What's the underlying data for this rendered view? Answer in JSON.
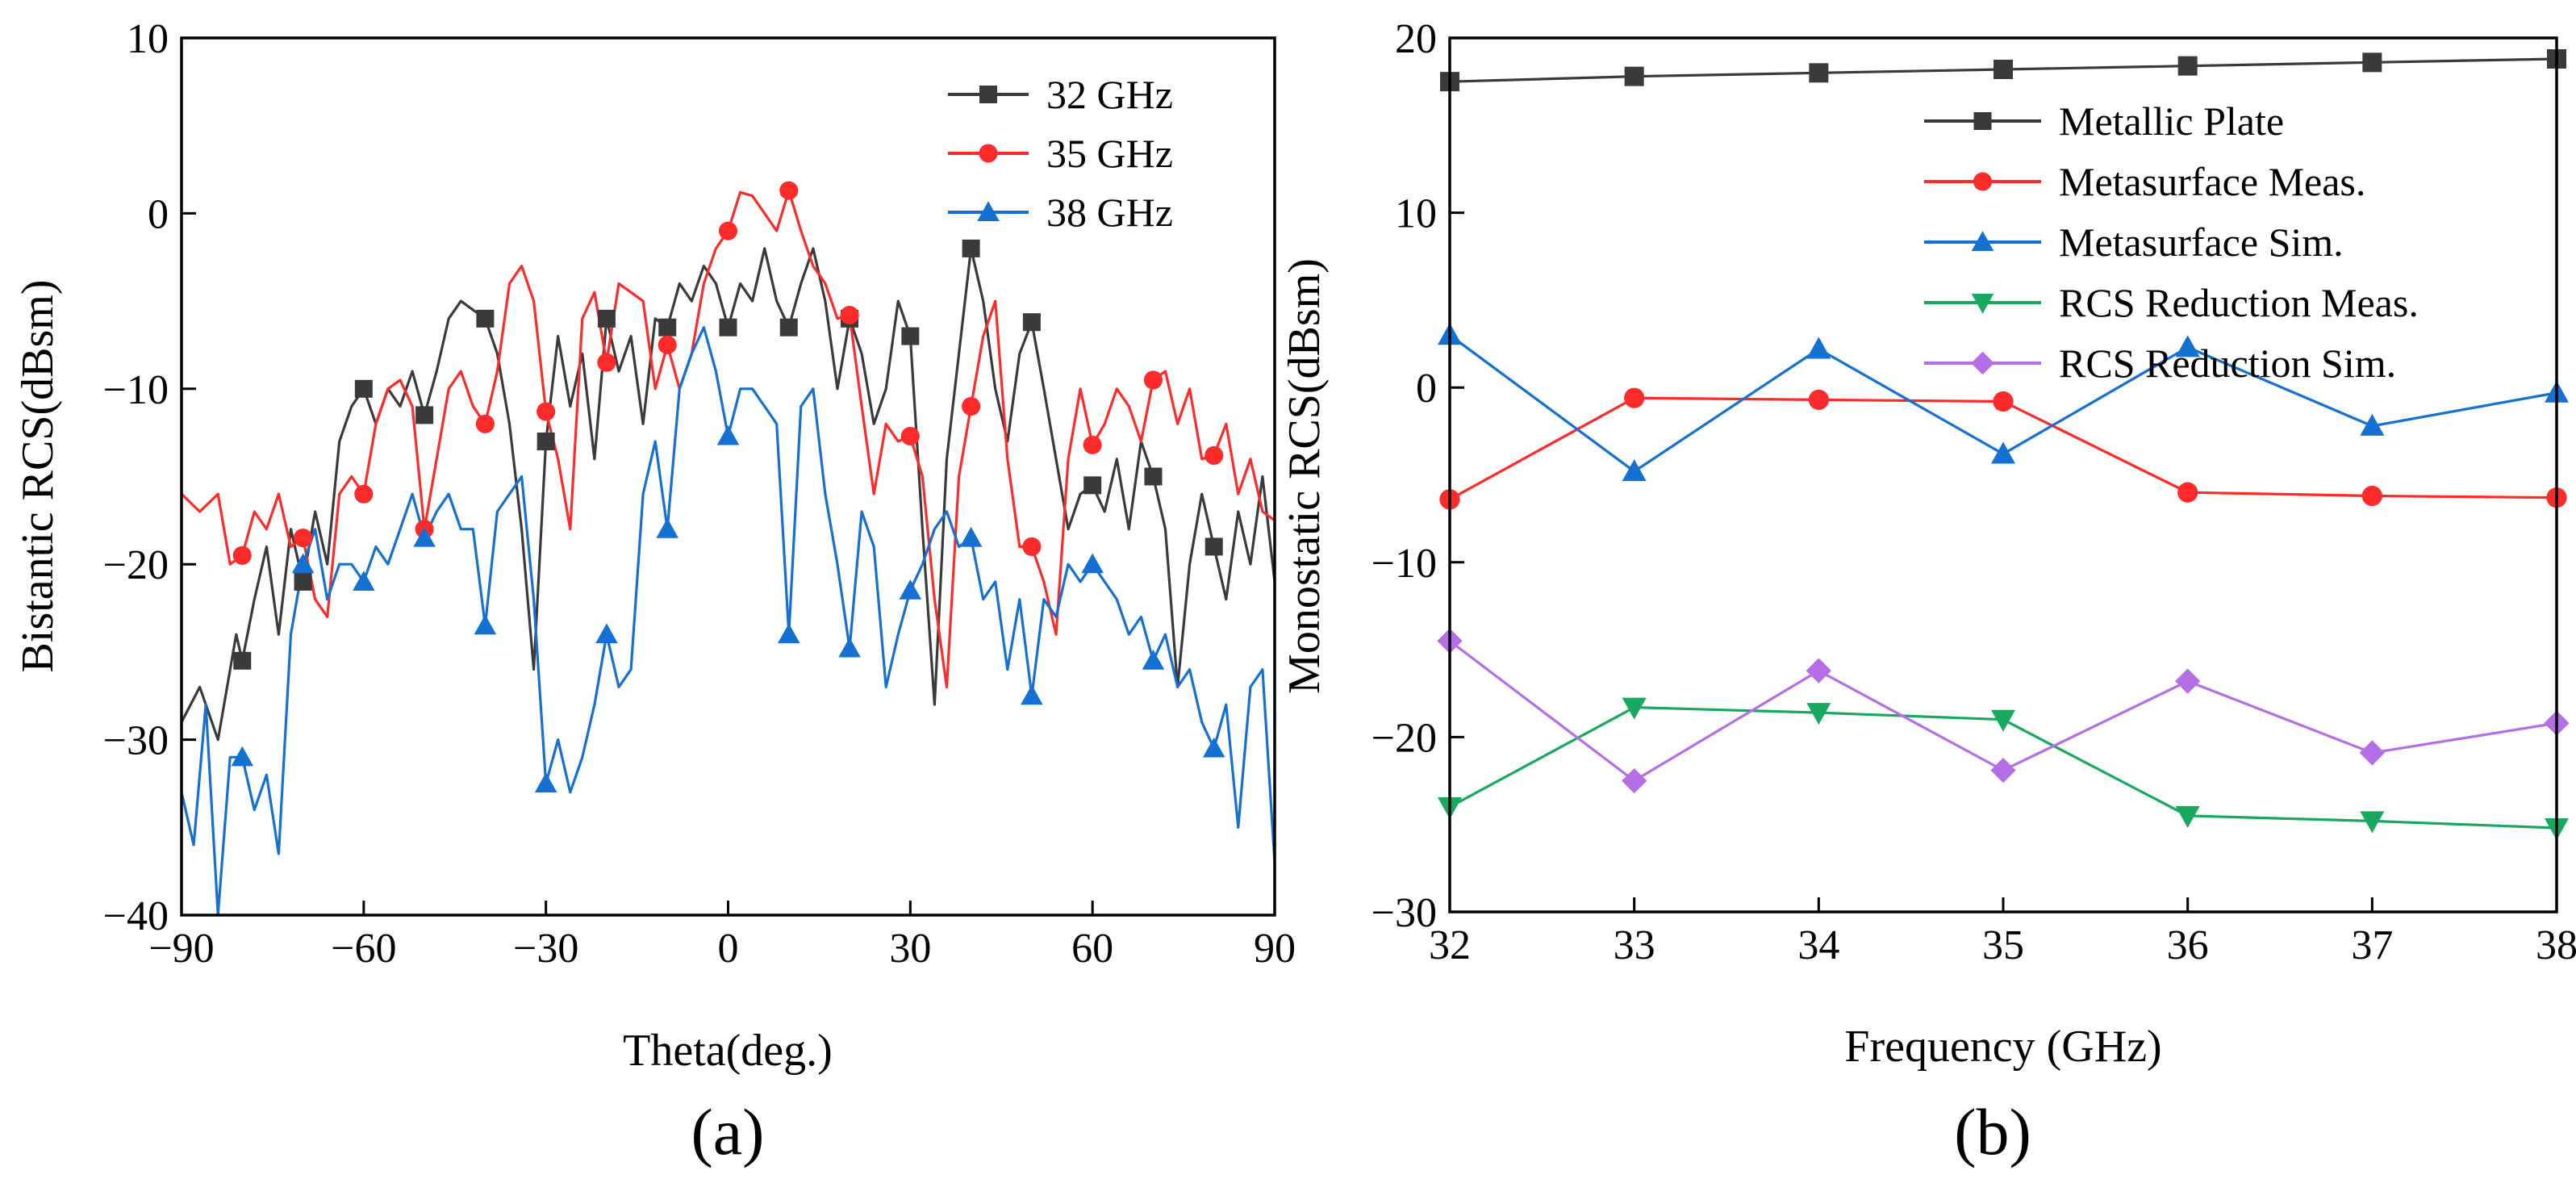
{
  "chart_data": [
    {
      "type": "line",
      "panel_label": "(a)",
      "xlabel": "Theta(deg.)",
      "ylabel": "Bistantic RCS(dBsm)",
      "xlim": [
        -90,
        90
      ],
      "ylim": [
        -40,
        10
      ],
      "xticks": [
        -90,
        -60,
        -30,
        0,
        30,
        60,
        90
      ],
      "yticks": [
        -40,
        -30,
        -20,
        -10,
        0,
        10
      ],
      "legend_position": "top-right",
      "series": [
        {
          "name": "32 GHz",
          "color": "#3a3a3a",
          "marker": "square",
          "marker_x": [
            -80,
            -70,
            -60,
            -50,
            -40,
            -30,
            -20,
            -10,
            0,
            10,
            20,
            30,
            40,
            50,
            60,
            70,
            80
          ],
          "x": [
            -90,
            -87,
            -84,
            -81,
            -80,
            -78,
            -76,
            -74,
            -72,
            -70,
            -68,
            -66,
            -64,
            -62,
            -60,
            -58,
            -56,
            -54,
            -52,
            -50,
            -48,
            -46,
            -44,
            -42,
            -40,
            -38,
            -36,
            -34,
            -32,
            -30,
            -28,
            -26,
            -24,
            -22,
            -20,
            -18,
            -16,
            -14,
            -12,
            -10,
            -8,
            -6,
            -4,
            -2,
            0,
            2,
            4,
            6,
            8,
            10,
            12,
            14,
            16,
            18,
            20,
            22,
            24,
            26,
            28,
            30,
            32,
            34,
            36,
            38,
            40,
            42,
            44,
            46,
            48,
            50,
            52,
            54,
            56,
            58,
            60,
            62,
            64,
            66,
            68,
            70,
            72,
            74,
            76,
            78,
            80,
            82,
            84,
            86,
            88,
            90
          ],
          "y": [
            -29,
            -27,
            -30,
            -24,
            -25.5,
            -22,
            -19,
            -24,
            -18,
            -21,
            -17,
            -20,
            -13,
            -11,
            -10,
            -12,
            -10,
            -11,
            -9,
            -11.5,
            -9,
            -6,
            -5,
            -5.5,
            -6,
            -8,
            -12,
            -18,
            -26,
            -13,
            -7,
            -11,
            -8,
            -14,
            -6,
            -9,
            -7,
            -12,
            -6,
            -6.5,
            -4,
            -5,
            -3,
            -4,
            -6.5,
            -4,
            -5,
            -2,
            -5,
            -6.5,
            -4,
            -2,
            -5,
            -10,
            -6,
            -8,
            -12,
            -10,
            -5,
            -7,
            -18,
            -28,
            -14,
            -8,
            -2,
            -5,
            -10,
            -13,
            -8,
            -6.2,
            -10,
            -14,
            -18,
            -16,
            -15.5,
            -17,
            -14,
            -18,
            -13,
            -15,
            -18,
            -27,
            -20,
            -16,
            -19,
            -22,
            -17,
            -20,
            -15,
            -21
          ]
        },
        {
          "name": "35 GHz",
          "color": "#ff2a2a",
          "marker": "circle",
          "marker_x": [
            -80,
            -70,
            -60,
            -50,
            -40,
            -30,
            -20,
            -10,
            0,
            10,
            20,
            30,
            40,
            50,
            60,
            70,
            80
          ],
          "x": [
            -90,
            -87,
            -84,
            -82,
            -80,
            -78,
            -76,
            -74,
            -72,
            -70,
            -68,
            -66,
            -64,
            -62,
            -60,
            -58,
            -56,
            -54,
            -52,
            -50,
            -48,
            -46,
            -44,
            -42,
            -40,
            -38,
            -36,
            -34,
            -32,
            -30,
            -28,
            -26,
            -24,
            -22,
            -20,
            -18,
            -16,
            -14,
            -12,
            -10,
            -8,
            -6,
            -4,
            -2,
            0,
            2,
            4,
            6,
            8,
            10,
            12,
            14,
            16,
            18,
            20,
            22,
            24,
            26,
            28,
            30,
            32,
            34,
            36,
            38,
            40,
            42,
            44,
            46,
            48,
            50,
            52,
            54,
            56,
            58,
            60,
            62,
            64,
            66,
            68,
            70,
            72,
            74,
            76,
            78,
            80,
            82,
            84,
            86,
            88,
            90
          ],
          "y": [
            -16,
            -17,
            -16,
            -20,
            -19.5,
            -17,
            -18,
            -16,
            -19,
            -18.5,
            -22,
            -23,
            -16,
            -15,
            -16,
            -12,
            -10,
            -9.5,
            -11,
            -18,
            -14,
            -10,
            -9,
            -11,
            -12,
            -9,
            -4,
            -3,
            -5,
            -11.3,
            -14,
            -18,
            -6,
            -4.5,
            -8.5,
            -4,
            -4.5,
            -5,
            -10,
            -7.5,
            -10,
            -8,
            -4,
            -2,
            -1,
            1.2,
            1,
            0,
            -1,
            1.3,
            -1,
            -3,
            -4,
            -6,
            -5.8,
            -11,
            -16,
            -12,
            -13,
            -12.7,
            -15,
            -22,
            -27,
            -15,
            -11,
            -7,
            -5,
            -14,
            -19,
            -19,
            -21,
            -24,
            -14,
            -10,
            -13.2,
            -12,
            -10,
            -11,
            -13,
            -9.5,
            -9,
            -12,
            -10,
            -14,
            -13.8,
            -12,
            -16,
            -14,
            -17,
            -17.5
          ]
        },
        {
          "name": "38 GHz",
          "color": "#1470d2",
          "marker": "triangle-up",
          "marker_x": [
            -80,
            -70,
            -60,
            -50,
            -40,
            -30,
            -20,
            -10,
            0,
            10,
            20,
            30,
            40,
            50,
            60,
            70,
            80
          ],
          "x": [
            -90,
            -88,
            -86,
            -84,
            -82,
            -80,
            -78,
            -76,
            -74,
            -72,
            -70,
            -68,
            -66,
            -64,
            -62,
            -60,
            -58,
            -56,
            -54,
            -52,
            -50,
            -48,
            -46,
            -44,
            -42,
            -40,
            -38,
            -36,
            -34,
            -32,
            -30,
            -28,
            -26,
            -24,
            -22,
            -20,
            -18,
            -16,
            -14,
            -12,
            -10,
            -8,
            -6,
            -4,
            -2,
            0,
            2,
            4,
            6,
            8,
            10,
            12,
            14,
            16,
            18,
            20,
            22,
            24,
            26,
            28,
            30,
            32,
            34,
            36,
            38,
            40,
            42,
            44,
            46,
            48,
            50,
            52,
            54,
            56,
            58,
            60,
            62,
            64,
            66,
            68,
            70,
            72,
            74,
            76,
            78,
            80,
            82,
            84,
            86,
            88,
            90
          ],
          "y": [
            -33,
            -36,
            -28,
            -40,
            -31,
            -31,
            -34,
            -32,
            -36.5,
            -24,
            -20,
            -18,
            -22,
            -20,
            -20,
            -21,
            -19,
            -20,
            -18,
            -16,
            -18.5,
            -17,
            -16,
            -18,
            -18,
            -23.5,
            -17,
            -16,
            -15,
            -22,
            -32.5,
            -30,
            -33,
            -31,
            -28,
            -24,
            -27,
            -26,
            -16,
            -13,
            -18,
            -10,
            -8,
            -6.5,
            -9,
            -12.7,
            -10,
            -10,
            -11,
            -12,
            -24,
            -11,
            -10,
            -16,
            -20,
            -24.8,
            -17,
            -19,
            -27,
            -24,
            -21.5,
            -20,
            -18,
            -17,
            -19,
            -18.5,
            -22,
            -21,
            -26,
            -22,
            -27.5,
            -22,
            -23,
            -20,
            -21,
            -20,
            -21,
            -22,
            -24,
            -23,
            -25.5,
            -24,
            -27,
            -26,
            -29,
            -30.5,
            -28,
            -35,
            -27,
            -26,
            -37
          ]
        }
      ]
    },
    {
      "type": "line",
      "panel_label": "(b)",
      "xlabel": "Frequency (GHz)",
      "ylabel": "Monostatic RCS(dBsm)",
      "xlim": [
        32,
        38
      ],
      "ylim": [
        -30,
        20
      ],
      "xticks": [
        32,
        33,
        34,
        35,
        36,
        37,
        38
      ],
      "yticks": [
        -30,
        -20,
        -10,
        0,
        10,
        20
      ],
      "legend_position": "top-right",
      "categories": [
        32,
        33,
        34,
        35,
        36,
        37,
        38
      ],
      "series": [
        {
          "name": "Metallic Plate",
          "color": "#3a3a3a",
          "marker": "square",
          "values": [
            17.5,
            17.8,
            18.0,
            18.2,
            18.4,
            18.6,
            18.8
          ]
        },
        {
          "name": "Metasurface Meas.",
          "color": "#ff2a2a",
          "marker": "circle",
          "values": [
            -6.4,
            -0.6,
            -0.7,
            -0.8,
            -6.0,
            -6.2,
            -6.3
          ]
        },
        {
          "name": "Metasurface Sim.",
          "color": "#1470d2",
          "marker": "triangle-up",
          "values": [
            3.0,
            -4.8,
            2.2,
            -3.8,
            2.3,
            -2.2,
            -0.3
          ]
        },
        {
          "name": "RCS Reduction Meas.",
          "color": "#18a860",
          "marker": "triangle-down",
          "values": [
            -24.0,
            -18.3,
            -18.6,
            -19.0,
            -24.5,
            -24.8,
            -25.2
          ]
        },
        {
          "name": "RCS Reduction Sim.",
          "color": "#b46ee6",
          "marker": "diamond",
          "values": [
            -14.5,
            -22.5,
            -16.2,
            -21.9,
            -16.8,
            -20.9,
            -19.2
          ]
        }
      ]
    }
  ]
}
